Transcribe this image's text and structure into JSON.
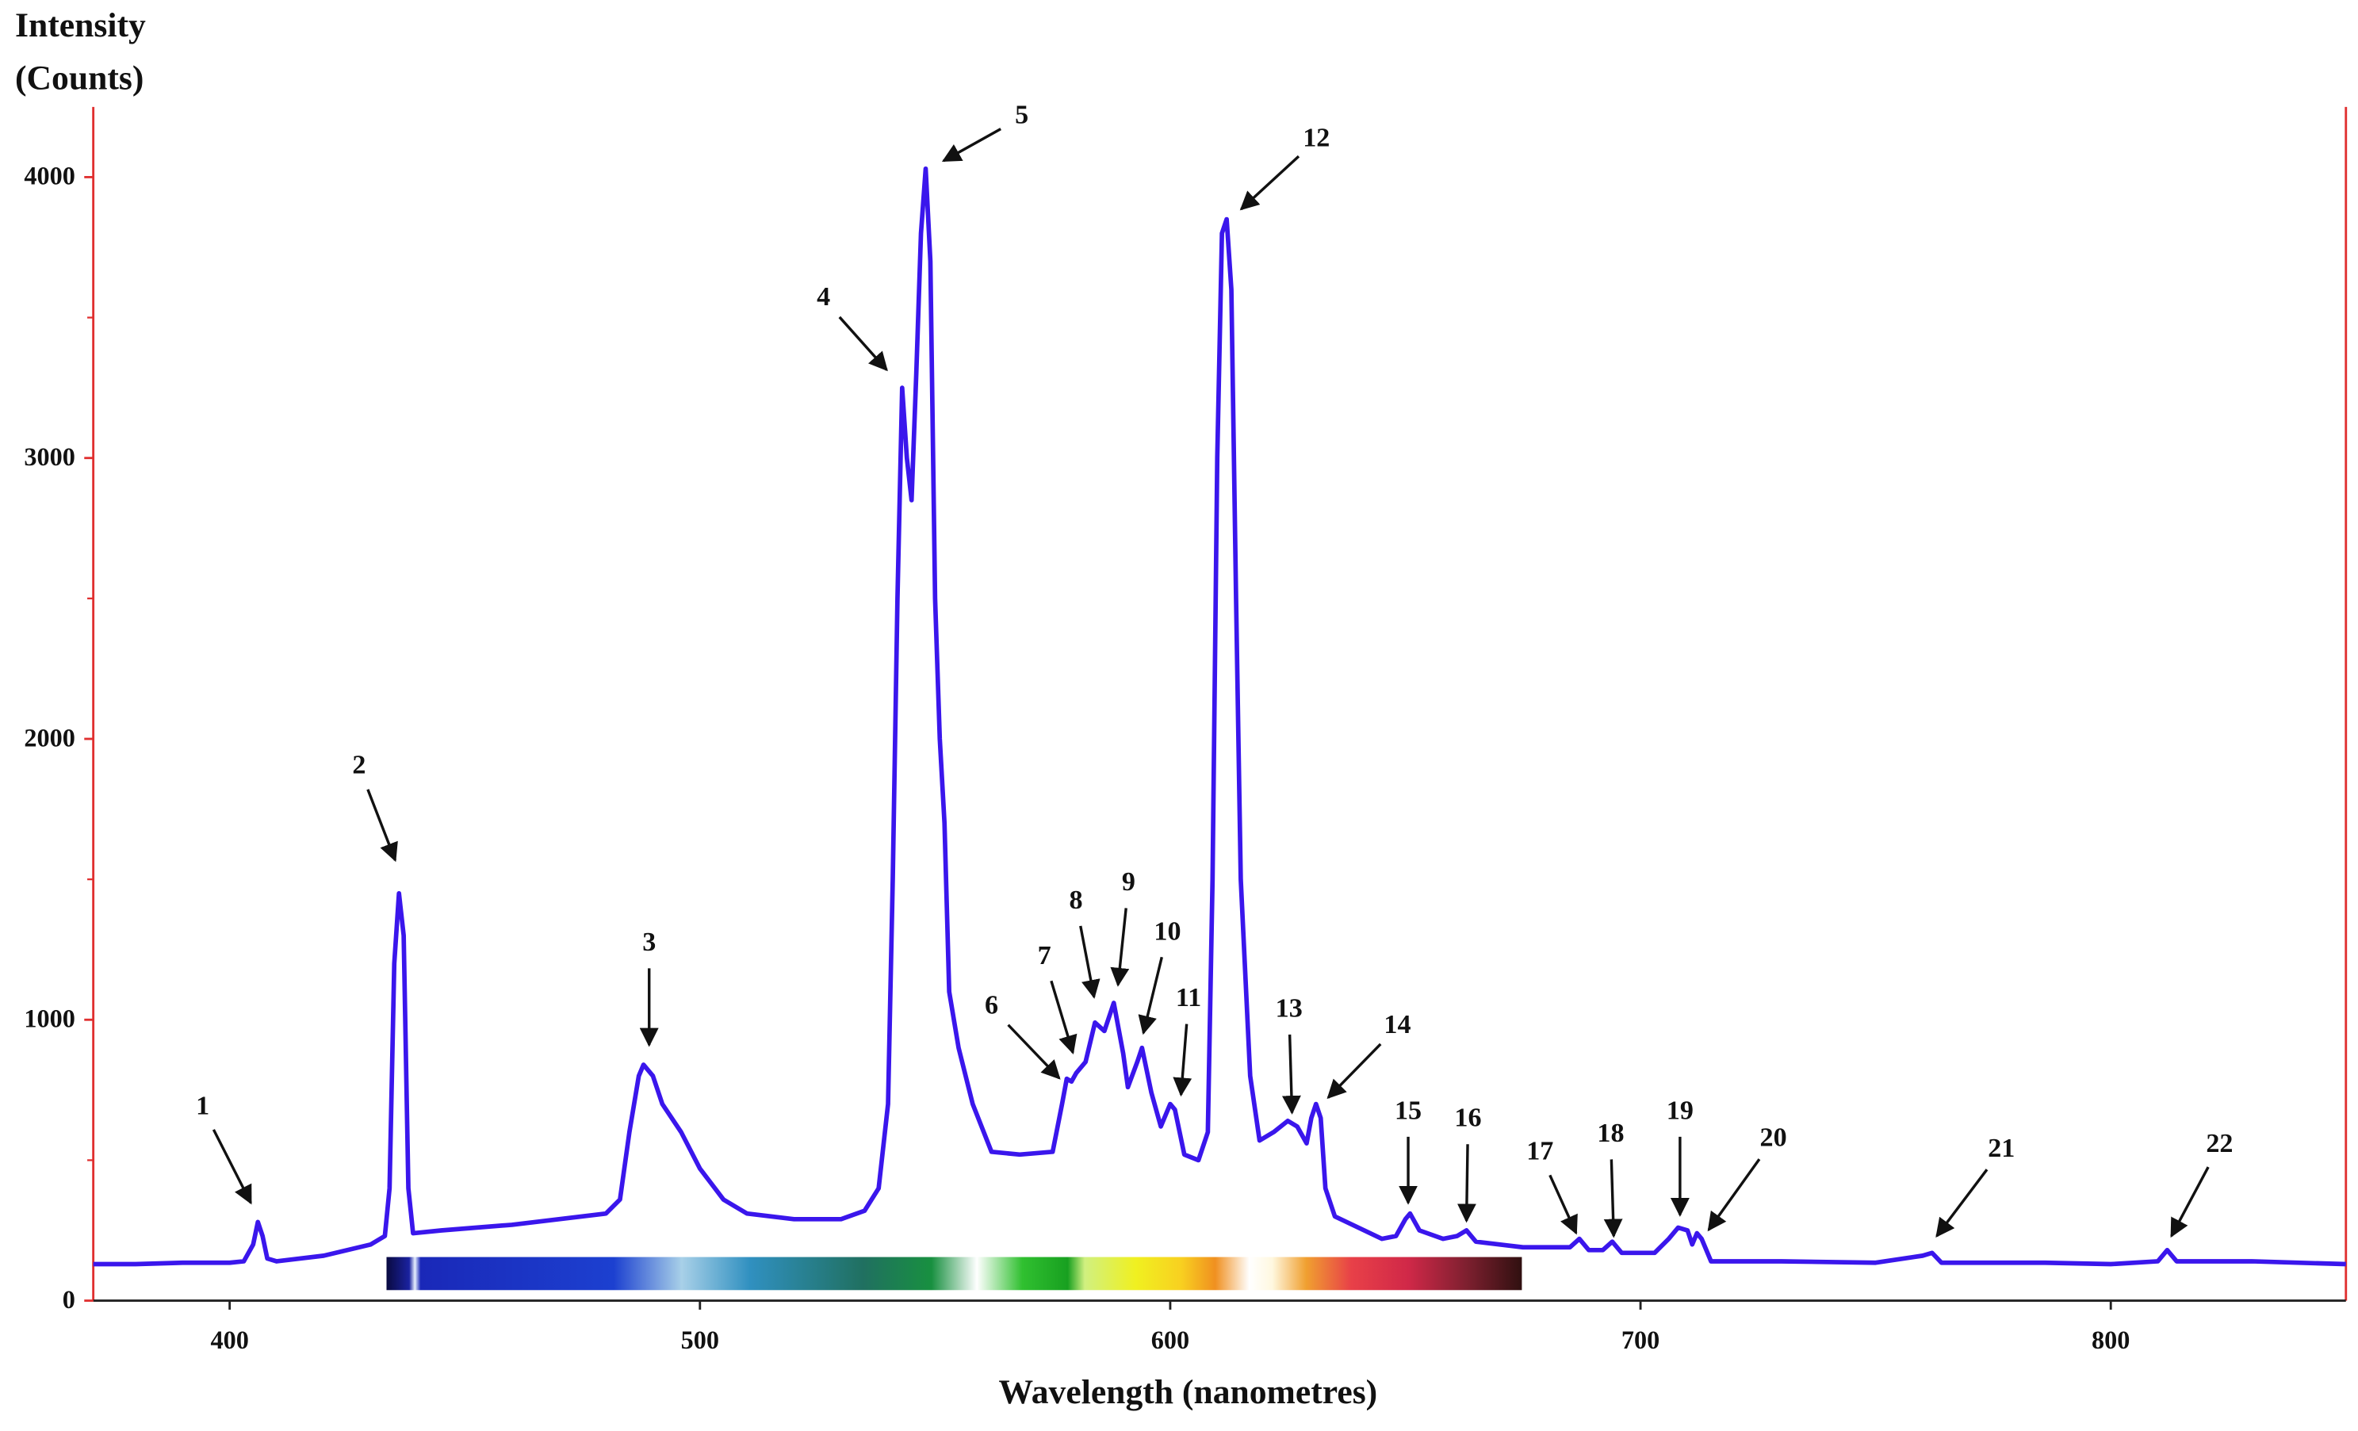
{
  "chart_data": {
    "type": "line",
    "y_label": [
      "Intensity",
      "(Counts)"
    ],
    "x_label": "Wavelength (nanometres)",
    "xlim": [
      371,
      850
    ],
    "xticks": [
      400,
      500,
      600,
      700,
      800
    ],
    "ylim": [
      0,
      4250
    ],
    "yticks": [
      0,
      1000,
      2000,
      3000,
      4000
    ],
    "y_minor_ticks": [
      500,
      1500,
      2500,
      3500
    ],
    "color": "#3a16ec",
    "axis_color": "#e03030",
    "x": [
      371,
      380,
      390,
      400,
      403,
      405,
      406,
      407,
      408,
      410,
      420,
      430,
      433,
      434,
      435,
      436,
      437,
      438,
      439,
      445,
      460,
      480,
      483,
      485,
      487,
      488,
      490,
      492,
      496,
      500,
      505,
      510,
      520,
      530,
      535,
      538,
      540,
      541,
      542,
      543,
      544,
      545,
      546,
      547,
      548,
      549,
      550,
      551,
      552,
      553,
      555,
      558,
      562,
      568,
      575,
      577,
      578,
      579,
      580,
      582,
      584,
      586,
      588,
      590,
      591,
      593,
      594,
      596,
      598,
      600,
      601,
      603,
      606,
      608,
      609,
      610,
      611,
      612,
      613,
      614,
      615,
      617,
      619,
      622,
      625,
      627,
      629,
      630,
      631,
      632,
      633,
      635,
      640,
      645,
      648,
      650,
      651,
      653,
      658,
      661,
      663,
      665,
      675,
      685,
      687,
      689,
      692,
      694,
      696,
      703,
      706,
      708,
      710,
      711,
      712,
      713,
      715,
      730,
      750,
      760,
      762,
      764,
      770,
      786,
      800,
      810,
      812,
      814,
      830,
      850
    ],
    "values": [
      130,
      130,
      135,
      135,
      140,
      200,
      280,
      230,
      150,
      140,
      160,
      200,
      230,
      400,
      1200,
      1450,
      1300,
      400,
      240,
      250,
      270,
      310,
      360,
      600,
      800,
      840,
      800,
      700,
      600,
      470,
      360,
      310,
      290,
      290,
      320,
      400,
      700,
      1500,
      2500,
      3250,
      3000,
      2850,
      3300,
      3800,
      4030,
      3700,
      2500,
      2000,
      1700,
      1100,
      900,
      700,
      530,
      520,
      530,
      700,
      790,
      780,
      810,
      850,
      990,
      960,
      1060,
      880,
      760,
      850,
      900,
      740,
      620,
      700,
      680,
      520,
      500,
      600,
      1500,
      3000,
      3800,
      3850,
      3600,
      2500,
      1500,
      800,
      570,
      600,
      640,
      620,
      560,
      650,
      700,
      650,
      400,
      300,
      260,
      220,
      230,
      290,
      310,
      250,
      220,
      230,
      250,
      210,
      190,
      190,
      220,
      180,
      180,
      210,
      170,
      170,
      220,
      260,
      250,
      200,
      240,
      220,
      140,
      140,
      135,
      160,
      170,
      135,
      135,
      135,
      130,
      140,
      180,
      140,
      140,
      130
    ],
    "annotations": [
      {
        "text": "1",
        "x": 404.5,
        "y": 348
      },
      {
        "text": "2",
        "x": 435.2,
        "y": 1568
      },
      {
        "text": "3",
        "x": 489.2,
        "y": 910
      },
      {
        "text": "4",
        "x": 539.7,
        "y": 3314
      },
      {
        "text": "5",
        "x": 551.8,
        "y": 4058
      },
      {
        "text": "6",
        "x": 576.4,
        "y": 792
      },
      {
        "text": "7",
        "x": 579.3,
        "y": 883
      },
      {
        "text": "8",
        "x": 583.8,
        "y": 1081
      },
      {
        "text": "9",
        "x": 588.9,
        "y": 1124
      },
      {
        "text": "10",
        "x": 594.3,
        "y": 953
      },
      {
        "text": "11",
        "x": 602.3,
        "y": 733
      },
      {
        "text": "12",
        "x": 615.1,
        "y": 3886
      },
      {
        "text": "13",
        "x": 625.9,
        "y": 669
      },
      {
        "text": "14",
        "x": 633.6,
        "y": 723
      },
      {
        "text": "15",
        "x": 650.6,
        "y": 348
      },
      {
        "text": "16",
        "x": 663.0,
        "y": 284
      },
      {
        "text": "17",
        "x": 686.3,
        "y": 241
      },
      {
        "text": "18",
        "x": 694.3,
        "y": 230
      },
      {
        "text": "19",
        "x": 708.4,
        "y": 305
      },
      {
        "text": "20",
        "x": 714.5,
        "y": 252
      },
      {
        "text": "21",
        "x": 763.0,
        "y": 230
      },
      {
        "text": "22",
        "x": 812.9,
        "y": 230
      }
    ]
  }
}
